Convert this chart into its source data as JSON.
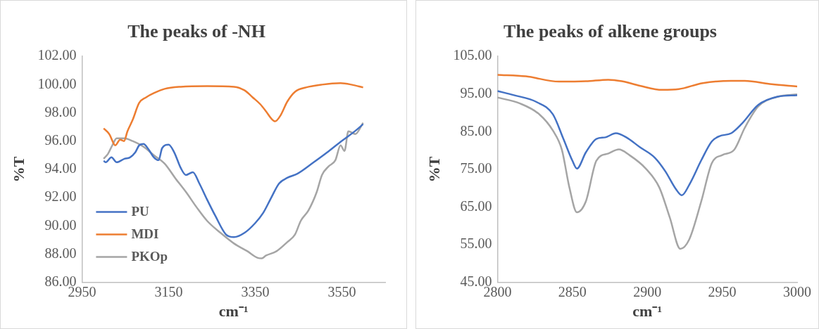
{
  "chart_data": [
    {
      "type": "line",
      "title": "The peaks of -NH",
      "xlabel": "cm⁻¹",
      "ylabel": "%T",
      "xlim": [
        2950,
        3650
      ],
      "xticks": [
        2950,
        3150,
        3350,
        3550
      ],
      "ylim": [
        86,
        102
      ],
      "yticks": [
        {
          "value": 86,
          "label": "86.00"
        },
        {
          "value": 88,
          "label": "88.00"
        },
        {
          "value": 90,
          "label": "90.00"
        },
        {
          "value": 92,
          "label": "92.00"
        },
        {
          "value": 94,
          "label": "94.00"
        },
        {
          "value": 96,
          "label": "96.00"
        },
        {
          "value": 98,
          "label": "98.00"
        },
        {
          "value": 100,
          "label": "100.00"
        },
        {
          "value": 102,
          "label": "102.00"
        }
      ],
      "grid": false,
      "legend": "bottom left",
      "marker": "none",
      "series": [
        {
          "name": "PU",
          "color": "#4472c4",
          "x": [
            3000,
            3005,
            3018,
            3030,
            3048,
            3061,
            3073,
            3082,
            3092,
            3104,
            3116,
            3127,
            3135,
            3150,
            3163,
            3178,
            3190,
            3206,
            3221,
            3239,
            3258,
            3282,
            3301,
            3325,
            3350,
            3368,
            3387,
            3405,
            3424,
            3448,
            3485,
            3516,
            3547,
            3565,
            3584,
            3599
          ],
          "values": [
            94.6,
            94.5,
            94.85,
            94.5,
            94.75,
            94.85,
            95.2,
            95.7,
            95.8,
            95.4,
            94.85,
            94.65,
            95.5,
            95.75,
            95.2,
            94.1,
            93.6,
            93.8,
            93.0,
            91.85,
            90.7,
            89.4,
            89.2,
            89.5,
            90.2,
            90.9,
            92.0,
            93.0,
            93.4,
            93.7,
            94.5,
            95.2,
            95.95,
            96.35,
            96.8,
            97.2
          ]
        },
        {
          "name": "MDI",
          "color": "#ed7d31",
          "x": [
            3000,
            3013,
            3027,
            3038,
            3047,
            3055,
            3067,
            3082,
            3098,
            3116,
            3141,
            3178,
            3239,
            3301,
            3325,
            3344,
            3362,
            3375,
            3387,
            3396,
            3408,
            3424,
            3442,
            3467,
            3504,
            3547,
            3572,
            3599
          ],
          "values": [
            96.9,
            96.5,
            95.7,
            96.1,
            96.0,
            96.7,
            97.5,
            98.7,
            99.1,
            99.4,
            99.7,
            99.85,
            99.9,
            99.85,
            99.6,
            99.1,
            98.6,
            98.1,
            97.6,
            97.4,
            97.8,
            98.8,
            99.5,
            99.8,
            100.0,
            100.1,
            100.0,
            99.8
          ]
        },
        {
          "name": "PKOp",
          "color": "#a5a5a5",
          "x": [
            3000,
            3010,
            3020,
            3030,
            3048,
            3067,
            3092,
            3116,
            3141,
            3166,
            3190,
            3215,
            3239,
            3270,
            3301,
            3332,
            3356,
            3365,
            3375,
            3399,
            3424,
            3442,
            3455,
            3473,
            3492,
            3504,
            3519,
            3535,
            3547,
            3556,
            3565,
            3581,
            3599
          ],
          "values": [
            94.75,
            95.1,
            95.7,
            96.2,
            96.2,
            96.0,
            95.6,
            95.0,
            94.4,
            93.35,
            92.4,
            91.3,
            90.35,
            89.5,
            88.75,
            88.2,
            87.73,
            87.7,
            87.9,
            88.2,
            88.85,
            89.4,
            90.35,
            91.1,
            92.4,
            93.6,
            94.2,
            94.65,
            95.7,
            95.3,
            96.7,
            96.5,
            97.3
          ]
        }
      ]
    },
    {
      "type": "line",
      "title": "The peaks of alkene groups",
      "xlabel": "cm⁻¹",
      "ylabel": "%T",
      "xlim": [
        2800,
        3000
      ],
      "xticks": [
        2800,
        2850,
        2900,
        2950,
        3000
      ],
      "ylim": [
        45,
        105
      ],
      "yticks": [
        {
          "value": 45,
          "label": "45.00"
        },
        {
          "value": 55,
          "label": "55.00"
        },
        {
          "value": 65,
          "label": "65.00"
        },
        {
          "value": 75,
          "label": "75.00"
        },
        {
          "value": 85,
          "label": "85.00"
        },
        {
          "value": 95,
          "label": "95.00"
        },
        {
          "value": 105,
          "label": "105.00"
        }
      ],
      "grid": false,
      "marker": "none",
      "series": [
        {
          "color": "#4472c4",
          "x": [
            2800,
            2811,
            2826,
            2837,
            2844,
            2850,
            2853,
            2859,
            2866,
            2872,
            2879,
            2886,
            2895,
            2905,
            2912,
            2919,
            2923,
            2928,
            2936,
            2943,
            2948,
            2956,
            2963,
            2974,
            2987,
            3000
          ],
          "values": [
            95.8,
            94.7,
            92.9,
            89.6,
            83.1,
            77.3,
            75.2,
            79.5,
            83.1,
            83.5,
            84.6,
            83.5,
            80.9,
            78.1,
            74.5,
            69.8,
            68.1,
            70.9,
            77.4,
            82.4,
            83.8,
            84.6,
            87.1,
            92.1,
            94.3,
            94.7
          ]
        },
        {
          "color": "#ed7d31",
          "x": [
            2800,
            2819,
            2841,
            2859,
            2874,
            2883,
            2895,
            2910,
            2921,
            2937,
            2956,
            2965,
            2983,
            3000
          ],
          "values": [
            100.1,
            99.7,
            98.3,
            98.4,
            98.8,
            98.4,
            97.2,
            96.1,
            96.3,
            97.9,
            98.5,
            98.5,
            97.6,
            97.0
          ]
        },
        {
          "color": "#a5a5a5",
          "x": [
            2800,
            2815,
            2828,
            2837,
            2843,
            2848,
            2853,
            2859,
            2866,
            2874,
            2881,
            2888,
            2899,
            2908,
            2915,
            2922,
            2928,
            2936,
            2943,
            2950,
            2958,
            2965,
            2974,
            2987,
            3000
          ],
          "values": [
            94.1,
            92.5,
            89.6,
            85.3,
            80.2,
            70.2,
            63.6,
            66.5,
            77.3,
            79.2,
            80.3,
            78.8,
            75.2,
            70.2,
            62.2,
            53.9,
            56.4,
            66.5,
            76.6,
            78.8,
            80.2,
            86.0,
            91.7,
            94.3,
            94.9
          ]
        }
      ]
    }
  ]
}
